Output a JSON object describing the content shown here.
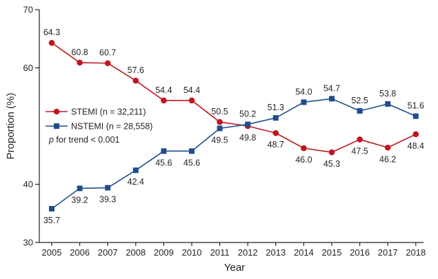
{
  "chart_data": {
    "type": "line",
    "title": "",
    "xlabel": "Year",
    "ylabel": "Proportion (%)",
    "ylim": [
      30,
      70
    ],
    "y_ticks": [
      "30",
      "40",
      "60",
      "70"
    ],
    "y_tick_values": [
      30,
      40,
      60,
      70
    ],
    "categories": [
      "2005",
      "2006",
      "2007",
      "2008",
      "2009",
      "2010",
      "2011",
      "2012",
      "2013",
      "2014",
      "2015",
      "2016",
      "2017",
      "2018"
    ],
    "series": [
      {
        "name": "STEMI (n = 32,211)",
        "color": "#c0161f",
        "marker": "circle",
        "values": [
          64.3,
          60.8,
          60.7,
          57.6,
          54.4,
          54.4,
          50.5,
          49.8,
          48.7,
          46.0,
          45.3,
          47.5,
          46.2,
          48.4
        ],
        "y_positions": [
          64.3,
          60.9,
          60.8,
          57.8,
          54.4,
          54.4,
          50.7,
          50.0,
          48.8,
          46.2,
          45.5,
          47.7,
          46.3,
          48.6
        ],
        "labels": [
          "64.3",
          "60.8",
          "60.7",
          "57.6",
          "54.4",
          "54.4",
          "50.5",
          "49.8",
          "48.7",
          "46.0",
          "45.3",
          "47.5",
          "46.2",
          "48.4"
        ]
      },
      {
        "name": "NSTEMI (n = 28,558)",
        "color": "#1f4e8c",
        "marker": "square",
        "values": [
          35.7,
          39.2,
          39.3,
          42.4,
          45.6,
          45.6,
          49.5,
          50.2,
          51.3,
          54.0,
          54.7,
          52.5,
          53.8,
          51.6
        ],
        "y_positions": [
          35.8,
          39.3,
          39.4,
          42.4,
          45.7,
          45.7,
          49.6,
          50.3,
          51.4,
          54.1,
          54.7,
          52.6,
          53.8,
          51.7
        ],
        "labels": [
          "35.7",
          "39.2",
          "39.3",
          "42.4",
          "45.6",
          "45.6",
          "49.5",
          "50.2",
          "51.3",
          "54.0",
          "54.7",
          "52.5",
          "53.8",
          "51.6"
        ]
      }
    ],
    "annotation": {
      "italic": "p",
      "rest": " for trend < 0.001"
    },
    "legend_position": "middle-left"
  }
}
